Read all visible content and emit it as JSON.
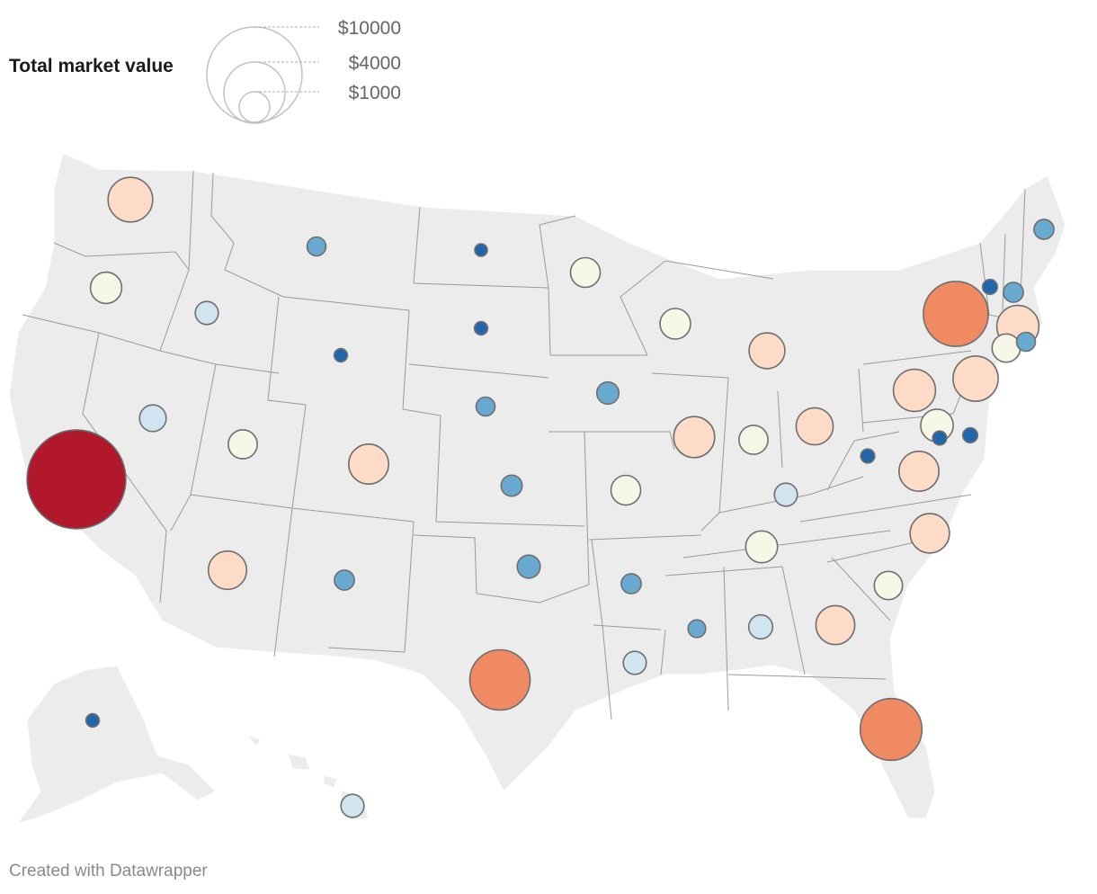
{
  "legend": {
    "title": "Total market value",
    "sizes": [
      {
        "label": "$10000",
        "value": 10000
      },
      {
        "label": "$4000",
        "value": 4000
      },
      {
        "label": "$1000",
        "value": 1000
      }
    ]
  },
  "footer": "Created with Datawrapper",
  "colors": {
    "land": "#ececec",
    "border": "#9a9a9a",
    "scale": [
      "#2166ac",
      "#67a9cf",
      "#d1e5f0",
      "#f7f7e8",
      "#fddbc7",
      "#ef8a62",
      "#b2182b"
    ]
  },
  "symbols": [
    {
      "state": "Washington",
      "level": 4,
      "size": 4.5
    },
    {
      "state": "Oregon",
      "level": 3,
      "size": 2.2
    },
    {
      "state": "California",
      "level": 6,
      "size": 22
    },
    {
      "state": "Nevada",
      "level": 2,
      "size": 1.6
    },
    {
      "state": "Idaho",
      "level": 2,
      "size": 1.2
    },
    {
      "state": "Montana",
      "level": 1,
      "size": 0.8
    },
    {
      "state": "Wyoming",
      "level": 0,
      "size": 0.4
    },
    {
      "state": "Utah",
      "level": 3,
      "size": 1.9
    },
    {
      "state": "Arizona",
      "level": 4,
      "size": 3.3
    },
    {
      "state": "Colorado",
      "level": 4,
      "size": 3.6
    },
    {
      "state": "New Mexico",
      "level": 1,
      "size": 0.9
    },
    {
      "state": "North Dakota",
      "level": 0,
      "size": 0.35
    },
    {
      "state": "South Dakota",
      "level": 0,
      "size": 0.4
    },
    {
      "state": "Nebraska",
      "level": 1,
      "size": 0.8
    },
    {
      "state": "Kansas",
      "level": 1,
      "size": 1.0
    },
    {
      "state": "Oklahoma",
      "level": 1,
      "size": 1.2
    },
    {
      "state": "Texas",
      "level": 5,
      "size": 8.2
    },
    {
      "state": "Minnesota",
      "level": 3,
      "size": 2.0
    },
    {
      "state": "Iowa",
      "level": 1,
      "size": 1.1
    },
    {
      "state": "Missouri",
      "level": 3,
      "size": 2.0
    },
    {
      "state": "Arkansas",
      "level": 1,
      "size": 0.9
    },
    {
      "state": "Louisiana",
      "level": 2,
      "size": 1.2
    },
    {
      "state": "Wisconsin",
      "level": 3,
      "size": 2.1
    },
    {
      "state": "Illinois",
      "level": 4,
      "size": 3.8
    },
    {
      "state": "Michigan",
      "level": 4,
      "size": 2.9
    },
    {
      "state": "Indiana",
      "level": 3,
      "size": 1.9
    },
    {
      "state": "Ohio",
      "level": 4,
      "size": 3.1
    },
    {
      "state": "Kentucky",
      "level": 2,
      "size": 1.2
    },
    {
      "state": "Tennessee",
      "level": 3,
      "size": 2.3
    },
    {
      "state": "Mississippi",
      "level": 1,
      "size": 0.7
    },
    {
      "state": "Alabama",
      "level": 2,
      "size": 1.3
    },
    {
      "state": "Georgia",
      "level": 4,
      "size": 3.4
    },
    {
      "state": "Florida",
      "level": 5,
      "size": 8.6
    },
    {
      "state": "South Carolina",
      "level": 3,
      "size": 1.8
    },
    {
      "state": "North Carolina",
      "level": 4,
      "size": 3.5
    },
    {
      "state": "Virginia",
      "level": 4,
      "size": 3.6
    },
    {
      "state": "West Virginia",
      "level": 0,
      "size": 0.45
    },
    {
      "state": "Pennsylvania",
      "level": 4,
      "size": 4.0
    },
    {
      "state": "New York",
      "level": 5,
      "size": 9.5
    },
    {
      "state": "New Jersey",
      "level": 4,
      "size": 4.6
    },
    {
      "state": "Maryland",
      "level": 3,
      "size": 2.4
    },
    {
      "state": "Delaware",
      "level": 0,
      "size": 0.5
    },
    {
      "state": "District of Columbia",
      "level": 0,
      "size": 0.45
    },
    {
      "state": "Massachusetts",
      "level": 4,
      "size": 4.0
    },
    {
      "state": "Connecticut",
      "level": 3,
      "size": 1.8
    },
    {
      "state": "Rhode Island",
      "level": 1,
      "size": 0.8
    },
    {
      "state": "Vermont",
      "level": 0,
      "size": 0.5
    },
    {
      "state": "New Hampshire",
      "level": 1,
      "size": 0.9
    },
    {
      "state": "Maine",
      "level": 1,
      "size": 0.9
    },
    {
      "state": "Alaska",
      "level": 0,
      "size": 0.4
    },
    {
      "state": "Hawaii",
      "level": 2,
      "size": 1.2
    }
  ]
}
